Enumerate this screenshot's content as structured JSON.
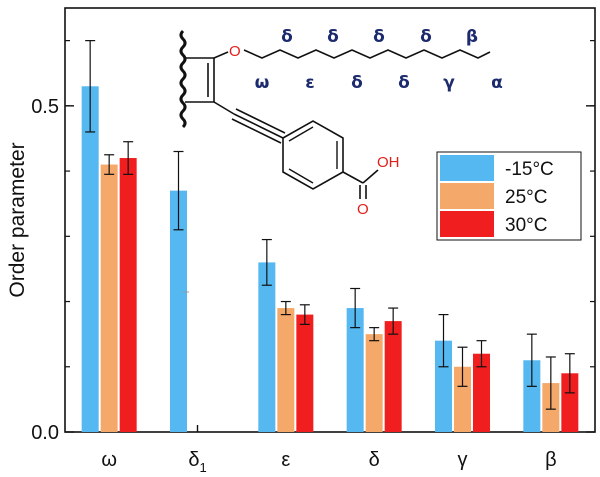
{
  "chart_data": {
    "type": "bar",
    "categories": [
      "ω",
      "δ1",
      "ε",
      "δ",
      "γ",
      "β"
    ],
    "category_labels": [
      {
        "main": "ω",
        "sub": ""
      },
      {
        "main": "δ",
        "sub": "1"
      },
      {
        "main": "ε",
        "sub": ""
      },
      {
        "main": "δ",
        "sub": ""
      },
      {
        "main": "γ",
        "sub": ""
      },
      {
        "main": "β",
        "sub": ""
      }
    ],
    "series": [
      {
        "name": "-15°C",
        "color": "#56b8f0",
        "values": [
          0.53,
          0.37,
          0.26,
          0.19,
          0.14,
          0.11
        ],
        "errors": [
          0.07,
          0.06,
          0.035,
          0.03,
          0.04,
          0.04
        ]
      },
      {
        "name": "25°C",
        "color": "#f4a86a",
        "values": [
          0.41,
          null,
          0.19,
          0.15,
          0.1,
          0.075
        ],
        "errors": [
          0.015,
          null,
          0.01,
          0.01,
          0.03,
          0.04
        ]
      },
      {
        "name": "30°C",
        "color": "#f01e1e",
        "values": [
          0.42,
          null,
          0.18,
          0.17,
          0.12,
          0.09
        ],
        "errors": [
          0.025,
          null,
          0.015,
          0.02,
          0.02,
          0.03
        ]
      }
    ],
    "ylabel": "Order parameter",
    "xlabel": "",
    "ylim": [
      0,
      0.65
    ],
    "yticks": [
      0.0,
      0.5
    ],
    "ytick_labels": [
      "0.0",
      "0.5"
    ],
    "grid": false,
    "legend_position": "right"
  },
  "molecule": {
    "chain_labels_top": [
      "δ",
      "δ",
      "δ",
      "δ",
      "β"
    ],
    "chain_labels_bottom": [
      "ω",
      "ε",
      "δ",
      "δ",
      "γ",
      "α"
    ],
    "oxygen": "O",
    "hydroxyl": "OH",
    "carbonyl_oxygen": "O"
  }
}
